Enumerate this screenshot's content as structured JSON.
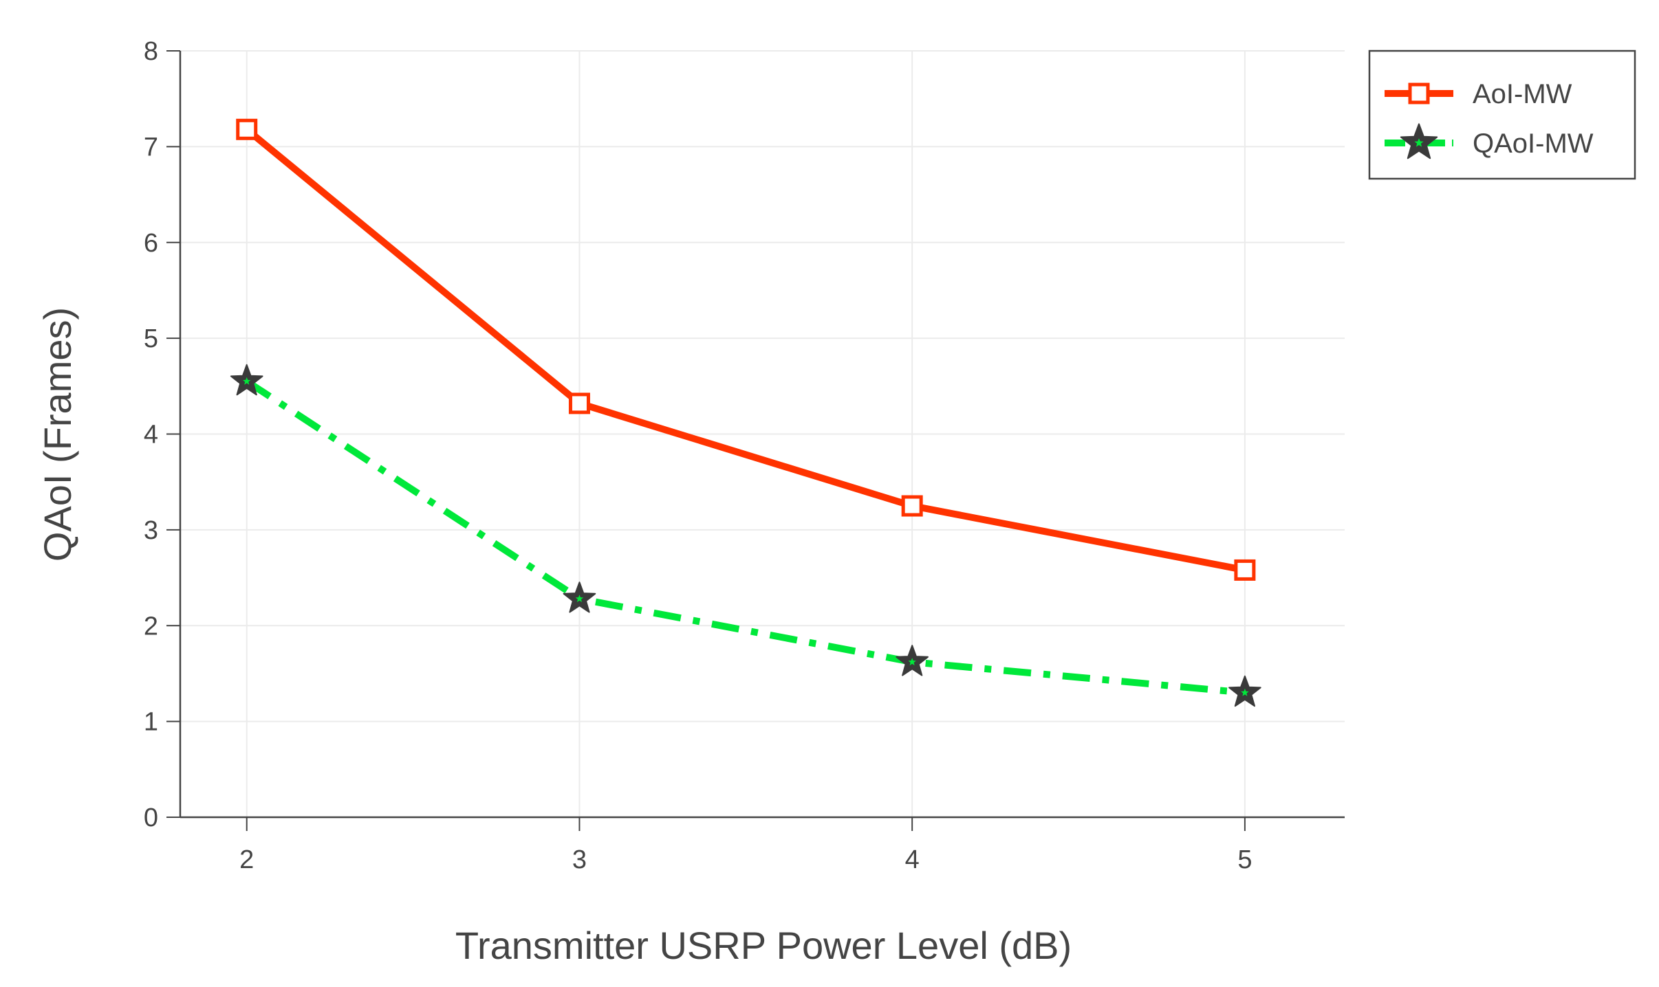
{
  "chart_data": {
    "type": "line",
    "title": "",
    "xlabel": "Transmitter USRP Power Level (dB)",
    "ylabel": "QAoI (Frames)",
    "x": [
      2,
      3,
      4,
      5
    ],
    "x_ticks": [
      "2",
      "3",
      "4",
      "5"
    ],
    "y_ticks": [
      "0",
      "1",
      "2",
      "3",
      "4",
      "5",
      "6",
      "7",
      "8"
    ],
    "xlim": [
      1.8,
      5.3
    ],
    "ylim": [
      0,
      8
    ],
    "grid": true,
    "legend_position": "top-right",
    "series": [
      {
        "name": "AoI-MW",
        "values": [
          7.18,
          4.32,
          3.25,
          2.58
        ],
        "color": "#ff3300",
        "line_style": "solid",
        "marker": "square"
      },
      {
        "name": "QAoI-MW",
        "values": [
          4.55,
          2.28,
          1.62,
          1.3
        ],
        "color": "#00e83a",
        "line_style": "dashdot",
        "marker": "star",
        "marker_color": "#3a3a3a"
      }
    ]
  }
}
